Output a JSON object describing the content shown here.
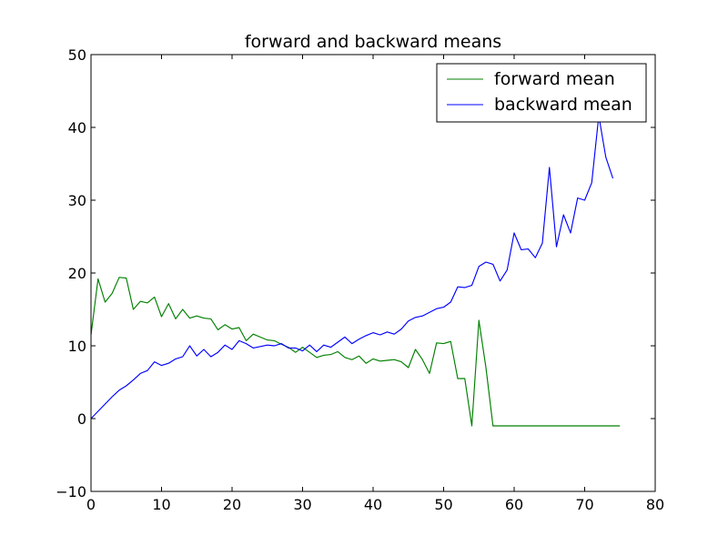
{
  "chart_data": {
    "type": "line",
    "title": "forward and backward means",
    "xlabel": "",
    "ylabel": "",
    "xlim": [
      0,
      80
    ],
    "ylim": [
      -10,
      50
    ],
    "xticks": [
      0,
      10,
      20,
      30,
      40,
      50,
      60,
      70,
      80
    ],
    "yticks": [
      -10,
      0,
      10,
      20,
      30,
      40,
      50
    ],
    "xtick_labels": [
      "0",
      "10",
      "20",
      "30",
      "40",
      "50",
      "60",
      "70",
      "80"
    ],
    "ytick_labels": [
      "−10",
      "0",
      "10",
      "20",
      "30",
      "40",
      "50"
    ],
    "grid": false,
    "legend_position": "top-right",
    "series": [
      {
        "name": "forward mean",
        "color": "#008000",
        "x": [
          0,
          1,
          2,
          3,
          4,
          5,
          6,
          7,
          8,
          9,
          10,
          11,
          12,
          13,
          14,
          15,
          16,
          17,
          18,
          19,
          20,
          21,
          22,
          23,
          24,
          25,
          26,
          27,
          28,
          29,
          30,
          31,
          32,
          33,
          34,
          35,
          36,
          37,
          38,
          39,
          40,
          41,
          42,
          43,
          44,
          45,
          46,
          47,
          48,
          49,
          50,
          51,
          52,
          53,
          54,
          55,
          56,
          57,
          58,
          59,
          60,
          61,
          62,
          63,
          64,
          65,
          66,
          67,
          68,
          69,
          70,
          71,
          72,
          73,
          74,
          75
        ],
        "y": [
          11.5,
          19.2,
          16.0,
          17.2,
          19.4,
          19.3,
          15.0,
          16.1,
          15.9,
          16.7,
          14.0,
          15.8,
          13.7,
          15.0,
          13.8,
          14.1,
          13.8,
          13.7,
          12.2,
          12.9,
          12.3,
          12.5,
          10.7,
          11.6,
          11.2,
          10.8,
          10.7,
          10.2,
          9.8,
          9.1,
          9.8,
          9.1,
          8.4,
          8.7,
          8.8,
          9.2,
          8.4,
          8.1,
          8.6,
          7.6,
          8.2,
          7.9,
          8.0,
          8.1,
          7.8,
          7.0,
          9.5,
          8.1,
          6.2,
          10.4,
          10.3,
          10.6,
          5.5,
          5.5,
          -1.0,
          13.5,
          7.0,
          -1.0,
          -1.0,
          -1.0,
          -1.0,
          -1.0,
          -1.0,
          -1.0,
          -1.0,
          -1.0,
          -1.0,
          -1.0,
          -1.0,
          -1.0,
          -1.0,
          -1.0,
          -1.0,
          -1.0,
          -1.0,
          -1.0
        ]
      },
      {
        "name": "backward mean",
        "color": "#0000ff",
        "x": [
          0,
          1,
          2,
          3,
          4,
          5,
          6,
          7,
          8,
          9,
          10,
          11,
          12,
          13,
          14,
          15,
          16,
          17,
          18,
          19,
          20,
          21,
          22,
          23,
          24,
          25,
          26,
          27,
          28,
          29,
          30,
          31,
          32,
          33,
          34,
          35,
          36,
          37,
          38,
          39,
          40,
          41,
          42,
          43,
          44,
          45,
          46,
          47,
          48,
          49,
          50,
          51,
          52,
          53,
          54,
          55,
          56,
          57,
          58,
          59,
          60,
          61,
          62,
          63,
          64,
          65,
          66,
          67,
          68,
          69,
          70,
          71,
          72,
          73,
          74
        ],
        "y": [
          0.0,
          1.0,
          2.0,
          3.0,
          3.9,
          4.5,
          5.3,
          6.2,
          6.6,
          7.8,
          7.3,
          7.6,
          8.2,
          8.5,
          10.0,
          8.6,
          9.5,
          8.5,
          9.1,
          10.1,
          9.5,
          10.7,
          10.3,
          9.7,
          9.9,
          10.1,
          10.0,
          10.3,
          9.7,
          9.7,
          9.3,
          10.1,
          9.2,
          10.1,
          9.8,
          10.5,
          11.2,
          10.3,
          10.9,
          11.4,
          11.8,
          11.5,
          11.9,
          11.6,
          12.3,
          13.4,
          13.9,
          14.1,
          14.6,
          15.1,
          15.3,
          16.0,
          18.1,
          18.0,
          18.3,
          20.9,
          21.5,
          21.2,
          18.9,
          20.4,
          25.5,
          23.2,
          23.3,
          22.1,
          24.1,
          34.5,
          23.6,
          28.0,
          25.5,
          30.3,
          30.0,
          32.4,
          41.6,
          35.9,
          33.0
        ]
      }
    ]
  }
}
